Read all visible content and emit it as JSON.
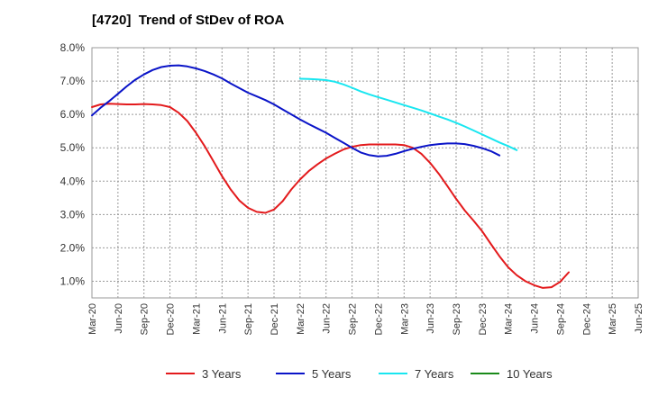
{
  "chart_data": {
    "type": "line",
    "title": "[4720]  Trend of StDev of ROA",
    "xlabel": "",
    "ylabel": "",
    "ylim": [
      0.5,
      8.0
    ],
    "y_ticks": [
      "1.0%",
      "2.0%",
      "3.0%",
      "4.0%",
      "5.0%",
      "6.0%",
      "7.0%",
      "8.0%"
    ],
    "x_ticks": [
      "Mar-20",
      "Jun-20",
      "Sep-20",
      "Dec-20",
      "Mar-21",
      "Jun-21",
      "Sep-21",
      "Dec-21",
      "Mar-22",
      "Jun-22",
      "Sep-22",
      "Dec-22",
      "Mar-23",
      "Jun-23",
      "Sep-23",
      "Dec-23",
      "Mar-24",
      "Jun-24",
      "Sep-24",
      "Dec-24",
      "Mar-25",
      "Jun-25"
    ],
    "grid": true,
    "legend_position": "bottom",
    "series": [
      {
        "name": "3 Years",
        "color": "#e31a1c",
        "values": [
          [
            "Mar-20",
            6.22
          ],
          [
            "Apr-20",
            6.3
          ],
          [
            "May-20",
            6.32
          ],
          [
            "Jun-20",
            6.31
          ],
          [
            "Jul-20",
            6.3
          ],
          [
            "Aug-20",
            6.3
          ],
          [
            "Sep-20",
            6.31
          ],
          [
            "Oct-20",
            6.3
          ],
          [
            "Nov-20",
            6.28
          ],
          [
            "Dec-20",
            6.22
          ],
          [
            "Jan-21",
            6.05
          ],
          [
            "Feb-21",
            5.8
          ],
          [
            "Mar-21",
            5.45
          ],
          [
            "Apr-21",
            5.05
          ],
          [
            "May-21",
            4.6
          ],
          [
            "Jun-21",
            4.15
          ],
          [
            "Jul-21",
            3.75
          ],
          [
            "Aug-21",
            3.42
          ],
          [
            "Sep-21",
            3.2
          ],
          [
            "Oct-21",
            3.08
          ],
          [
            "Nov-21",
            3.05
          ],
          [
            "Dec-21",
            3.15
          ],
          [
            "Jan-22",
            3.4
          ],
          [
            "Feb-22",
            3.75
          ],
          [
            "Mar-22",
            4.05
          ],
          [
            "Apr-22",
            4.3
          ],
          [
            "May-22",
            4.5
          ],
          [
            "Jun-22",
            4.68
          ],
          [
            "Jul-22",
            4.82
          ],
          [
            "Aug-22",
            4.95
          ],
          [
            "Sep-22",
            5.03
          ],
          [
            "Oct-22",
            5.08
          ],
          [
            "Nov-22",
            5.1
          ],
          [
            "Dec-22",
            5.1
          ],
          [
            "Jan-23",
            5.1
          ],
          [
            "Feb-23",
            5.1
          ],
          [
            "Mar-23",
            5.08
          ],
          [
            "Apr-23",
            5.0
          ],
          [
            "May-23",
            4.82
          ],
          [
            "Jun-23",
            4.55
          ],
          [
            "Jul-23",
            4.22
          ],
          [
            "Aug-23",
            3.85
          ],
          [
            "Sep-23",
            3.47
          ],
          [
            "Oct-23",
            3.12
          ],
          [
            "Nov-23",
            2.82
          ],
          [
            "Dec-23",
            2.5
          ],
          [
            "Jan-24",
            2.12
          ],
          [
            "Feb-24",
            1.75
          ],
          [
            "Mar-24",
            1.42
          ],
          [
            "Apr-24",
            1.18
          ],
          [
            "May-24",
            1.0
          ],
          [
            "Jun-24",
            0.88
          ],
          [
            "Jul-24",
            0.8
          ],
          [
            "Aug-24",
            0.82
          ],
          [
            "Sep-24",
            0.98
          ],
          [
            "Oct-24",
            1.27
          ]
        ]
      },
      {
        "name": "5 Years",
        "color": "#0a14c8",
        "values": [
          [
            "Mar-20",
            5.97
          ],
          [
            "Apr-20",
            6.2
          ],
          [
            "May-20",
            6.4
          ],
          [
            "Jun-20",
            6.62
          ],
          [
            "Jul-20",
            6.84
          ],
          [
            "Aug-20",
            7.04
          ],
          [
            "Sep-20",
            7.2
          ],
          [
            "Oct-20",
            7.33
          ],
          [
            "Nov-20",
            7.42
          ],
          [
            "Dec-20",
            7.46
          ],
          [
            "Jan-21",
            7.47
          ],
          [
            "Feb-21",
            7.44
          ],
          [
            "Mar-21",
            7.38
          ],
          [
            "Apr-21",
            7.3
          ],
          [
            "May-21",
            7.2
          ],
          [
            "Jun-21",
            7.08
          ],
          [
            "Jul-21",
            6.93
          ],
          [
            "Aug-21",
            6.79
          ],
          [
            "Sep-21",
            6.65
          ],
          [
            "Oct-21",
            6.54
          ],
          [
            "Nov-21",
            6.43
          ],
          [
            "Dec-21",
            6.3
          ],
          [
            "Jan-22",
            6.15
          ],
          [
            "Feb-22",
            6.0
          ],
          [
            "Mar-22",
            5.85
          ],
          [
            "Apr-22",
            5.71
          ],
          [
            "May-22",
            5.58
          ],
          [
            "Jun-22",
            5.45
          ],
          [
            "Jul-22",
            5.3
          ],
          [
            "Aug-22",
            5.15
          ],
          [
            "Sep-22",
            5.0
          ],
          [
            "Oct-22",
            4.86
          ],
          [
            "Nov-22",
            4.78
          ],
          [
            "Dec-22",
            4.74
          ],
          [
            "Jan-23",
            4.76
          ],
          [
            "Feb-23",
            4.82
          ],
          [
            "Mar-23",
            4.9
          ],
          [
            "Apr-23",
            4.97
          ],
          [
            "May-23",
            5.03
          ],
          [
            "Jun-23",
            5.08
          ],
          [
            "Jul-23",
            5.11
          ],
          [
            "Aug-23",
            5.13
          ],
          [
            "Sep-23",
            5.13
          ],
          [
            "Oct-23",
            5.11
          ],
          [
            "Nov-23",
            5.06
          ],
          [
            "Dec-23",
            4.99
          ],
          [
            "Jan-24",
            4.9
          ],
          [
            "Feb-24",
            4.77
          ]
        ]
      },
      {
        "name": "7 Years",
        "color": "#19e6f0",
        "values": [
          [
            "Mar-22",
            7.07
          ],
          [
            "Apr-22",
            7.06
          ],
          [
            "May-22",
            7.05
          ],
          [
            "Jun-22",
            7.03
          ],
          [
            "Jul-22",
            6.98
          ],
          [
            "Aug-22",
            6.9
          ],
          [
            "Sep-22",
            6.8
          ],
          [
            "Oct-22",
            6.69
          ],
          [
            "Nov-22",
            6.6
          ],
          [
            "Dec-22",
            6.52
          ],
          [
            "Jan-23",
            6.44
          ],
          [
            "Feb-23",
            6.36
          ],
          [
            "Mar-23",
            6.28
          ],
          [
            "Apr-23",
            6.2
          ],
          [
            "May-23",
            6.12
          ],
          [
            "Jun-23",
            6.03
          ],
          [
            "Jul-23",
            5.94
          ],
          [
            "Aug-23",
            5.85
          ],
          [
            "Sep-23",
            5.75
          ],
          [
            "Oct-23",
            5.64
          ],
          [
            "Nov-23",
            5.52
          ],
          [
            "Dec-23",
            5.4
          ],
          [
            "Jan-24",
            5.28
          ],
          [
            "Feb-24",
            5.16
          ],
          [
            "Mar-24",
            5.05
          ],
          [
            "Apr-24",
            4.93
          ]
        ]
      },
      {
        "name": "10 Years",
        "color": "#1a8a1a",
        "values": []
      }
    ]
  }
}
